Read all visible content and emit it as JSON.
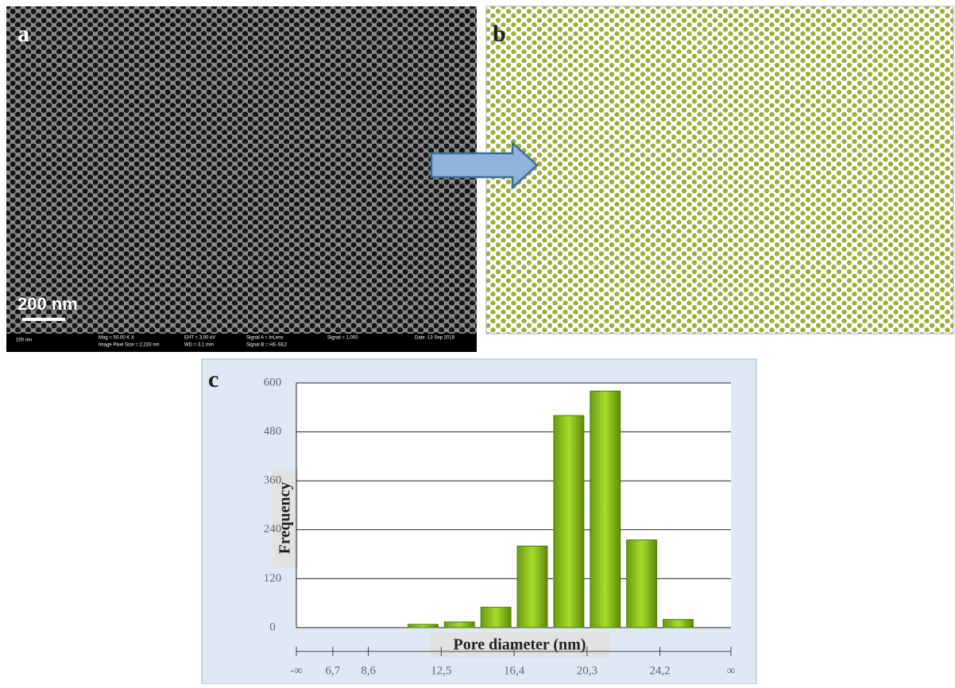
{
  "panels": {
    "a": {
      "label": "a",
      "scale_bar": "200 nm",
      "info": [
        "100 nm",
        "Mag =  50.00 K X",
        "Image Pixel Size = 2.233 nm",
        "EHT =  3.00 kV",
        "WD =  3.1 mm",
        "Signal A = InLens",
        "Signal B = HE-SE2",
        "Signal = 1.000",
        "Date :13 Sep 2019"
      ]
    },
    "b": {
      "label": "b"
    },
    "c": {
      "label": "c"
    }
  },
  "chart_data": {
    "type": "histogram",
    "x_label": "Pore diameter (nm)",
    "y_label": "Frequency",
    "bins": [
      6.7,
      8.6,
      10.55,
      12.5,
      14.45,
      16.4,
      18.35,
      20.3,
      22.25,
      24.2,
      26.15
    ],
    "values": [
      0,
      0,
      8,
      14,
      50,
      200,
      520,
      580,
      215,
      20
    ],
    "color": "#8cc21c",
    "xlim": [
      4.75,
      28
    ],
    "xticks": [
      {
        "value": 4.75,
        "label": "-∞"
      },
      {
        "value": 6.7,
        "label": "6,7"
      },
      {
        "value": 8.6,
        "label": "8,6"
      },
      {
        "value": 12.5,
        "label": "12,5"
      },
      {
        "value": 16.4,
        "label": "16,4"
      },
      {
        "value": 20.3,
        "label": "20,3"
      },
      {
        "value": 24.2,
        "label": "24,2"
      },
      {
        "value": 28,
        "label": "∞"
      }
    ],
    "ylim": [
      0,
      600
    ],
    "yticks": [
      0,
      120,
      240,
      360,
      480,
      600
    ],
    "grid": true
  }
}
